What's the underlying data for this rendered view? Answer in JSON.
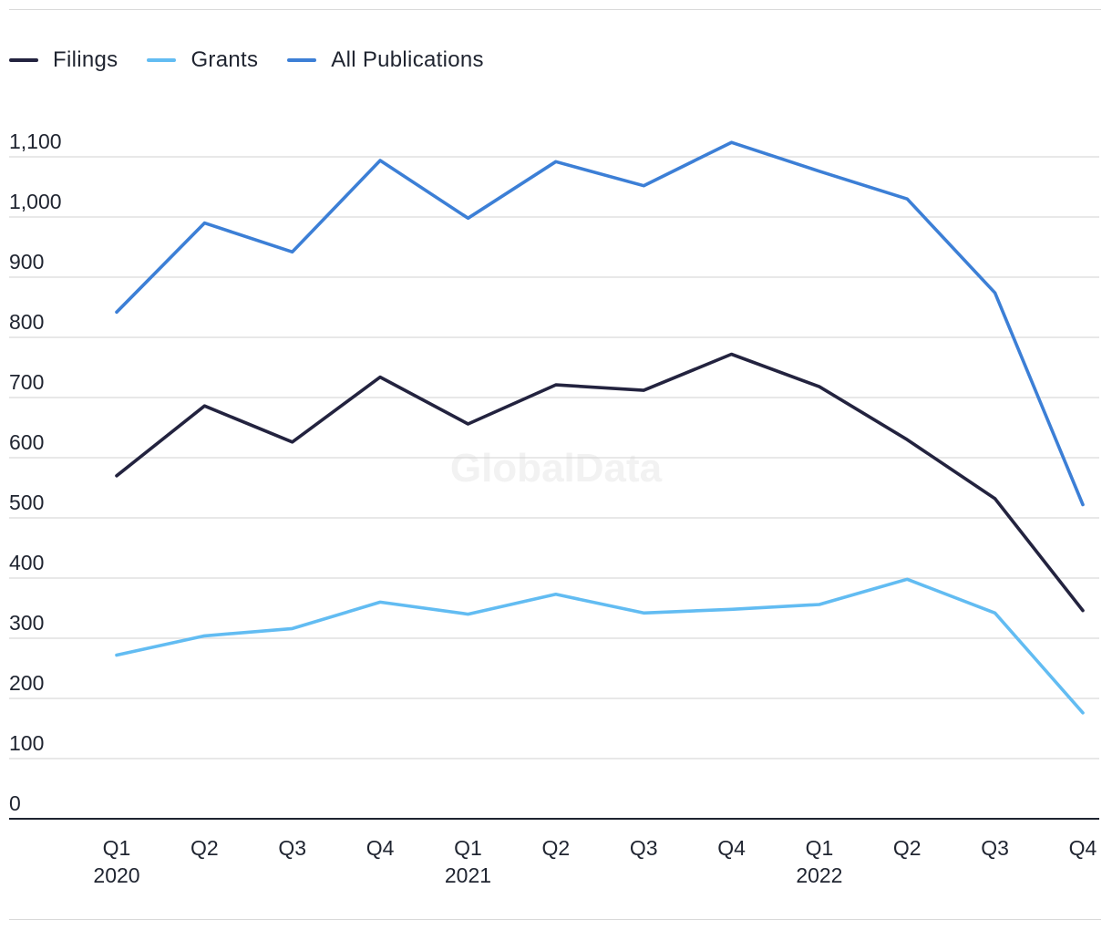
{
  "chart_data": {
    "type": "line",
    "title": "",
    "xlabel": "",
    "ylabel": "",
    "ylim": [
      0,
      1100
    ],
    "yticks": [
      0,
      100,
      200,
      300,
      400,
      500,
      600,
      700,
      800,
      900,
      1000,
      1100
    ],
    "ytick_labels": [
      "0",
      "100",
      "200",
      "300",
      "400",
      "500",
      "600",
      "700",
      "800",
      "900",
      "1,000",
      "1,100"
    ],
    "categories": [
      "Q1 2020",
      "Q2 2020",
      "Q3 2020",
      "Q4 2020",
      "Q1 2021",
      "Q2 2021",
      "Q3 2021",
      "Q4 2021",
      "Q1 2022",
      "Q2 2022",
      "Q3 2022",
      "Q4 2022"
    ],
    "x_tick_labels": [
      {
        "quarter": "Q1",
        "year": "2020"
      },
      {
        "quarter": "Q2",
        "year": ""
      },
      {
        "quarter": "Q3",
        "year": ""
      },
      {
        "quarter": "Q4",
        "year": ""
      },
      {
        "quarter": "Q1",
        "year": "2021"
      },
      {
        "quarter": "Q2",
        "year": ""
      },
      {
        "quarter": "Q3",
        "year": ""
      },
      {
        "quarter": "Q4",
        "year": ""
      },
      {
        "quarter": "Q1",
        "year": "2022"
      },
      {
        "quarter": "Q2",
        "year": ""
      },
      {
        "quarter": "Q3",
        "year": ""
      },
      {
        "quarter": "Q4",
        "year": ""
      }
    ],
    "series": [
      {
        "name": "Filings",
        "color": "#23233f",
        "values": [
          570,
          686,
          626,
          734,
          656,
          721,
          712,
          772,
          718,
          630,
          532,
          346
        ]
      },
      {
        "name": "Grants",
        "color": "#62bcf2",
        "values": [
          272,
          304,
          316,
          360,
          340,
          373,
          342,
          348,
          356,
          398,
          342,
          176
        ]
      },
      {
        "name": "All Publications",
        "color": "#3c7fd6",
        "values": [
          842,
          990,
          942,
          1094,
          998,
          1092,
          1052,
          1124,
          1076,
          1030,
          874,
          522
        ]
      }
    ],
    "legend_position": "top-left",
    "grid": true,
    "watermark": "GlobalData"
  }
}
